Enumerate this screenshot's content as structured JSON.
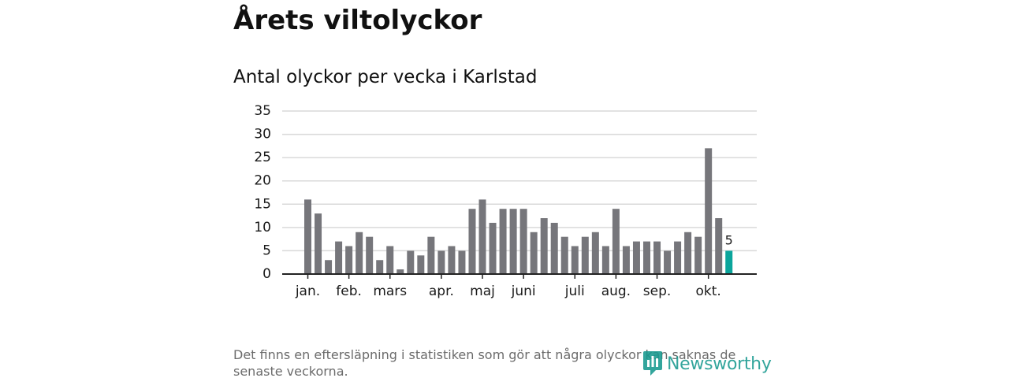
{
  "title": "Årets viltolyckor",
  "subtitle": "Antal olyckor per vecka i Karlstad",
  "footnote": "Det finns en eftersläpning i statistiken som gör att några olyckor kan saknas de senaste veckorna.",
  "logo_text": "Newsworthy",
  "colors": {
    "bar": "#76767b",
    "highlight": "#0ba59c",
    "grid": "#d9d9d9",
    "axis": "#222222",
    "logo": "#17998f"
  },
  "chart_data": {
    "type": "bar",
    "title": "Antal olyckor per vecka i Karlstad",
    "xlabel": "",
    "ylabel": "",
    "ylim": [
      0,
      35
    ],
    "yticks": [
      0,
      5,
      10,
      15,
      20,
      25,
      30,
      35
    ],
    "grid": true,
    "values": [
      16,
      13,
      3,
      7,
      6,
      9,
      8,
      3,
      6,
      1,
      5,
      4,
      8,
      5,
      6,
      5,
      14,
      16,
      11,
      14,
      14,
      14,
      9,
      12,
      11,
      8,
      6,
      8,
      9,
      6,
      14,
      6,
      7,
      7,
      7,
      5,
      7,
      9,
      8,
      27,
      12,
      5
    ],
    "highlight_index": 41,
    "highlight_label": "5",
    "month_ticks": [
      {
        "label": "jan.",
        "week_index": 0
      },
      {
        "label": "feb.",
        "week_index": 4
      },
      {
        "label": "mars",
        "week_index": 8
      },
      {
        "label": "apr.",
        "week_index": 13
      },
      {
        "label": "maj",
        "week_index": 17
      },
      {
        "label": "juni",
        "week_index": 21
      },
      {
        "label": "juli",
        "week_index": 26
      },
      {
        "label": "aug.",
        "week_index": 30
      },
      {
        "label": "sep.",
        "week_index": 34
      },
      {
        "label": "okt.",
        "week_index": 39
      }
    ]
  }
}
